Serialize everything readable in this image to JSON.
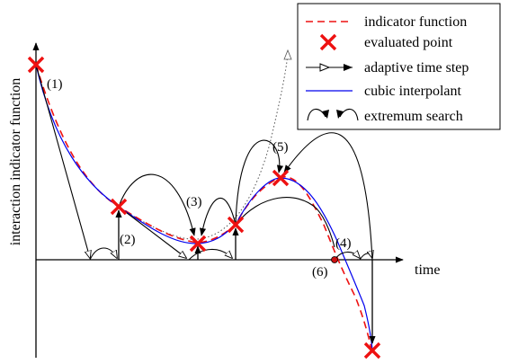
{
  "labels": {
    "ylabel": "interaction indicator function",
    "xlabel": "time",
    "p1": "(1)",
    "p2": "(2)",
    "p3": "(3)",
    "p4": "(4)",
    "p5": "(5)",
    "p6": "(6)"
  },
  "legend": {
    "items": [
      {
        "label": "indicator function",
        "icon": "red-dashed-line"
      },
      {
        "label": "evaluated point",
        "icon": "red-cross"
      },
      {
        "label": "adaptive time step",
        "icon": "open-and-filled-arrowheads"
      },
      {
        "label": "cubic interpolant",
        "icon": "blue-line"
      },
      {
        "label": "extremum search",
        "icon": "curved-arcs-with-arrowheads"
      }
    ]
  },
  "colors": {
    "indicator": "#ee1111",
    "interpolant": "#0000ee",
    "cross": "#ee1111",
    "ink": "#000000"
  }
}
